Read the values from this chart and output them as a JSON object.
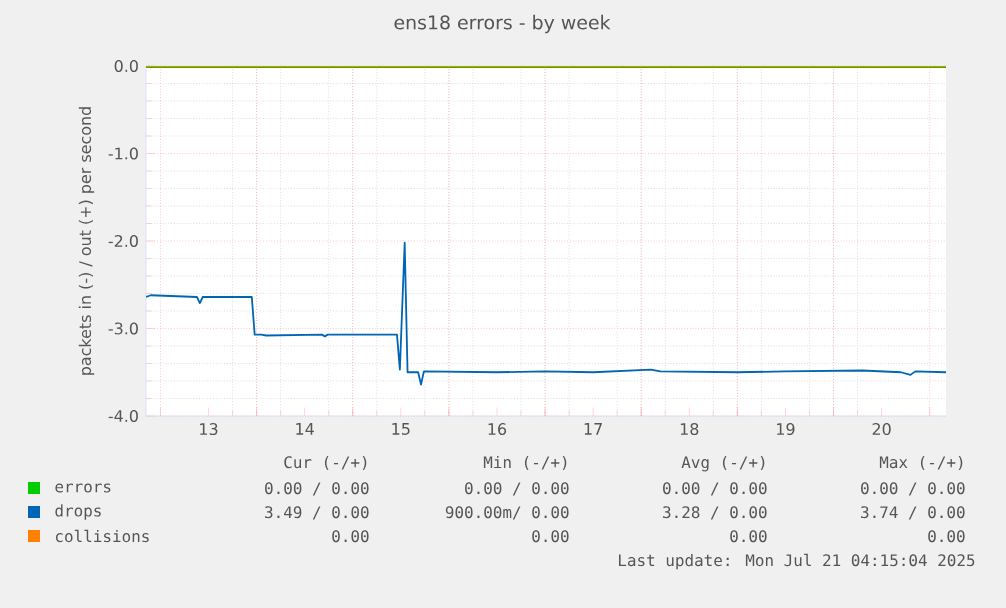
{
  "chart_data": {
    "type": "line",
    "title": "ens18 errors - by week",
    "ylabel": "packets in (-) / out (+) per second",
    "xlim": [
      12.35,
      20.67
    ],
    "ylim": [
      -4.0,
      0.0
    ],
    "xticks": [
      13,
      14,
      15,
      16,
      17,
      18,
      19,
      20,
      {
        "value": 12.5,
        "label": null
      },
      {
        "value": 13.5,
        "label": null
      },
      {
        "value": 14.5,
        "label": null
      },
      {
        "value": 15.5,
        "label": null
      },
      {
        "value": 16.5,
        "label": null
      },
      {
        "value": 17.5,
        "label": null
      },
      {
        "value": 18.5,
        "label": null
      },
      {
        "value": 19.5,
        "label": null
      },
      {
        "value": 20.5,
        "label": null
      }
    ],
    "yticks": [
      {
        "value": -4.0,
        "label": "-4.0"
      },
      {
        "value": -3.0,
        "label": "-3.0"
      },
      {
        "value": -2.0,
        "label": "-2.0"
      },
      {
        "value": -1.0,
        "label": "-1.0"
      },
      {
        "value": 0.0,
        "label": "0.0"
      }
    ],
    "grid": true,
    "legend": "bottom",
    "series": [
      {
        "name": "errors",
        "color": "#00cc00",
        "x": [
          12.35,
          20.67
        ],
        "values": [
          0,
          0
        ]
      },
      {
        "name": "drops",
        "color": "#0066b3",
        "x": [
          12.35,
          12.4,
          12.88,
          12.91,
          12.94,
          13.45,
          13.48,
          13.55,
          13.6,
          14.18,
          14.21,
          14.24,
          14.96,
          14.99,
          15.04,
          15.07,
          15.18,
          15.21,
          15.24,
          16.0,
          16.5,
          17.0,
          17.6,
          17.7,
          18.5,
          19.0,
          19.8,
          20.2,
          20.3,
          20.35,
          20.67
        ],
        "values": [
          -2.64,
          -2.62,
          -2.64,
          -2.71,
          -2.64,
          -2.64,
          -3.07,
          -3.07,
          -3.08,
          -3.07,
          -3.09,
          -3.07,
          -3.07,
          -3.47,
          -2.02,
          -3.5,
          -3.5,
          -3.64,
          -3.49,
          -3.5,
          -3.49,
          -3.5,
          -3.47,
          -3.49,
          -3.5,
          -3.49,
          -3.48,
          -3.5,
          -3.53,
          -3.49,
          -3.5
        ]
      },
      {
        "name": "collisions",
        "color": "#ff7f00",
        "x": [
          12.35,
          20.67
        ],
        "values": [
          0,
          0
        ]
      }
    ],
    "annotations": [
      "Cur (-/+)",
      "Min (-/+)",
      "Avg (-/+)",
      "Max (-/+)",
      "0.00 / 0.00",
      "0.00 / 0.00",
      "0.00 / 0.00",
      "0.00 / 0.00",
      "3.49 / 0.00",
      "900.00m/ 0.00",
      "3.28 / 0.00",
      "3.74 / 0.00",
      "0.00",
      "0.00",
      "0.00",
      "0.00",
      "Last update: Mon Jul 21 04:15:04 2025"
    ]
  }
}
